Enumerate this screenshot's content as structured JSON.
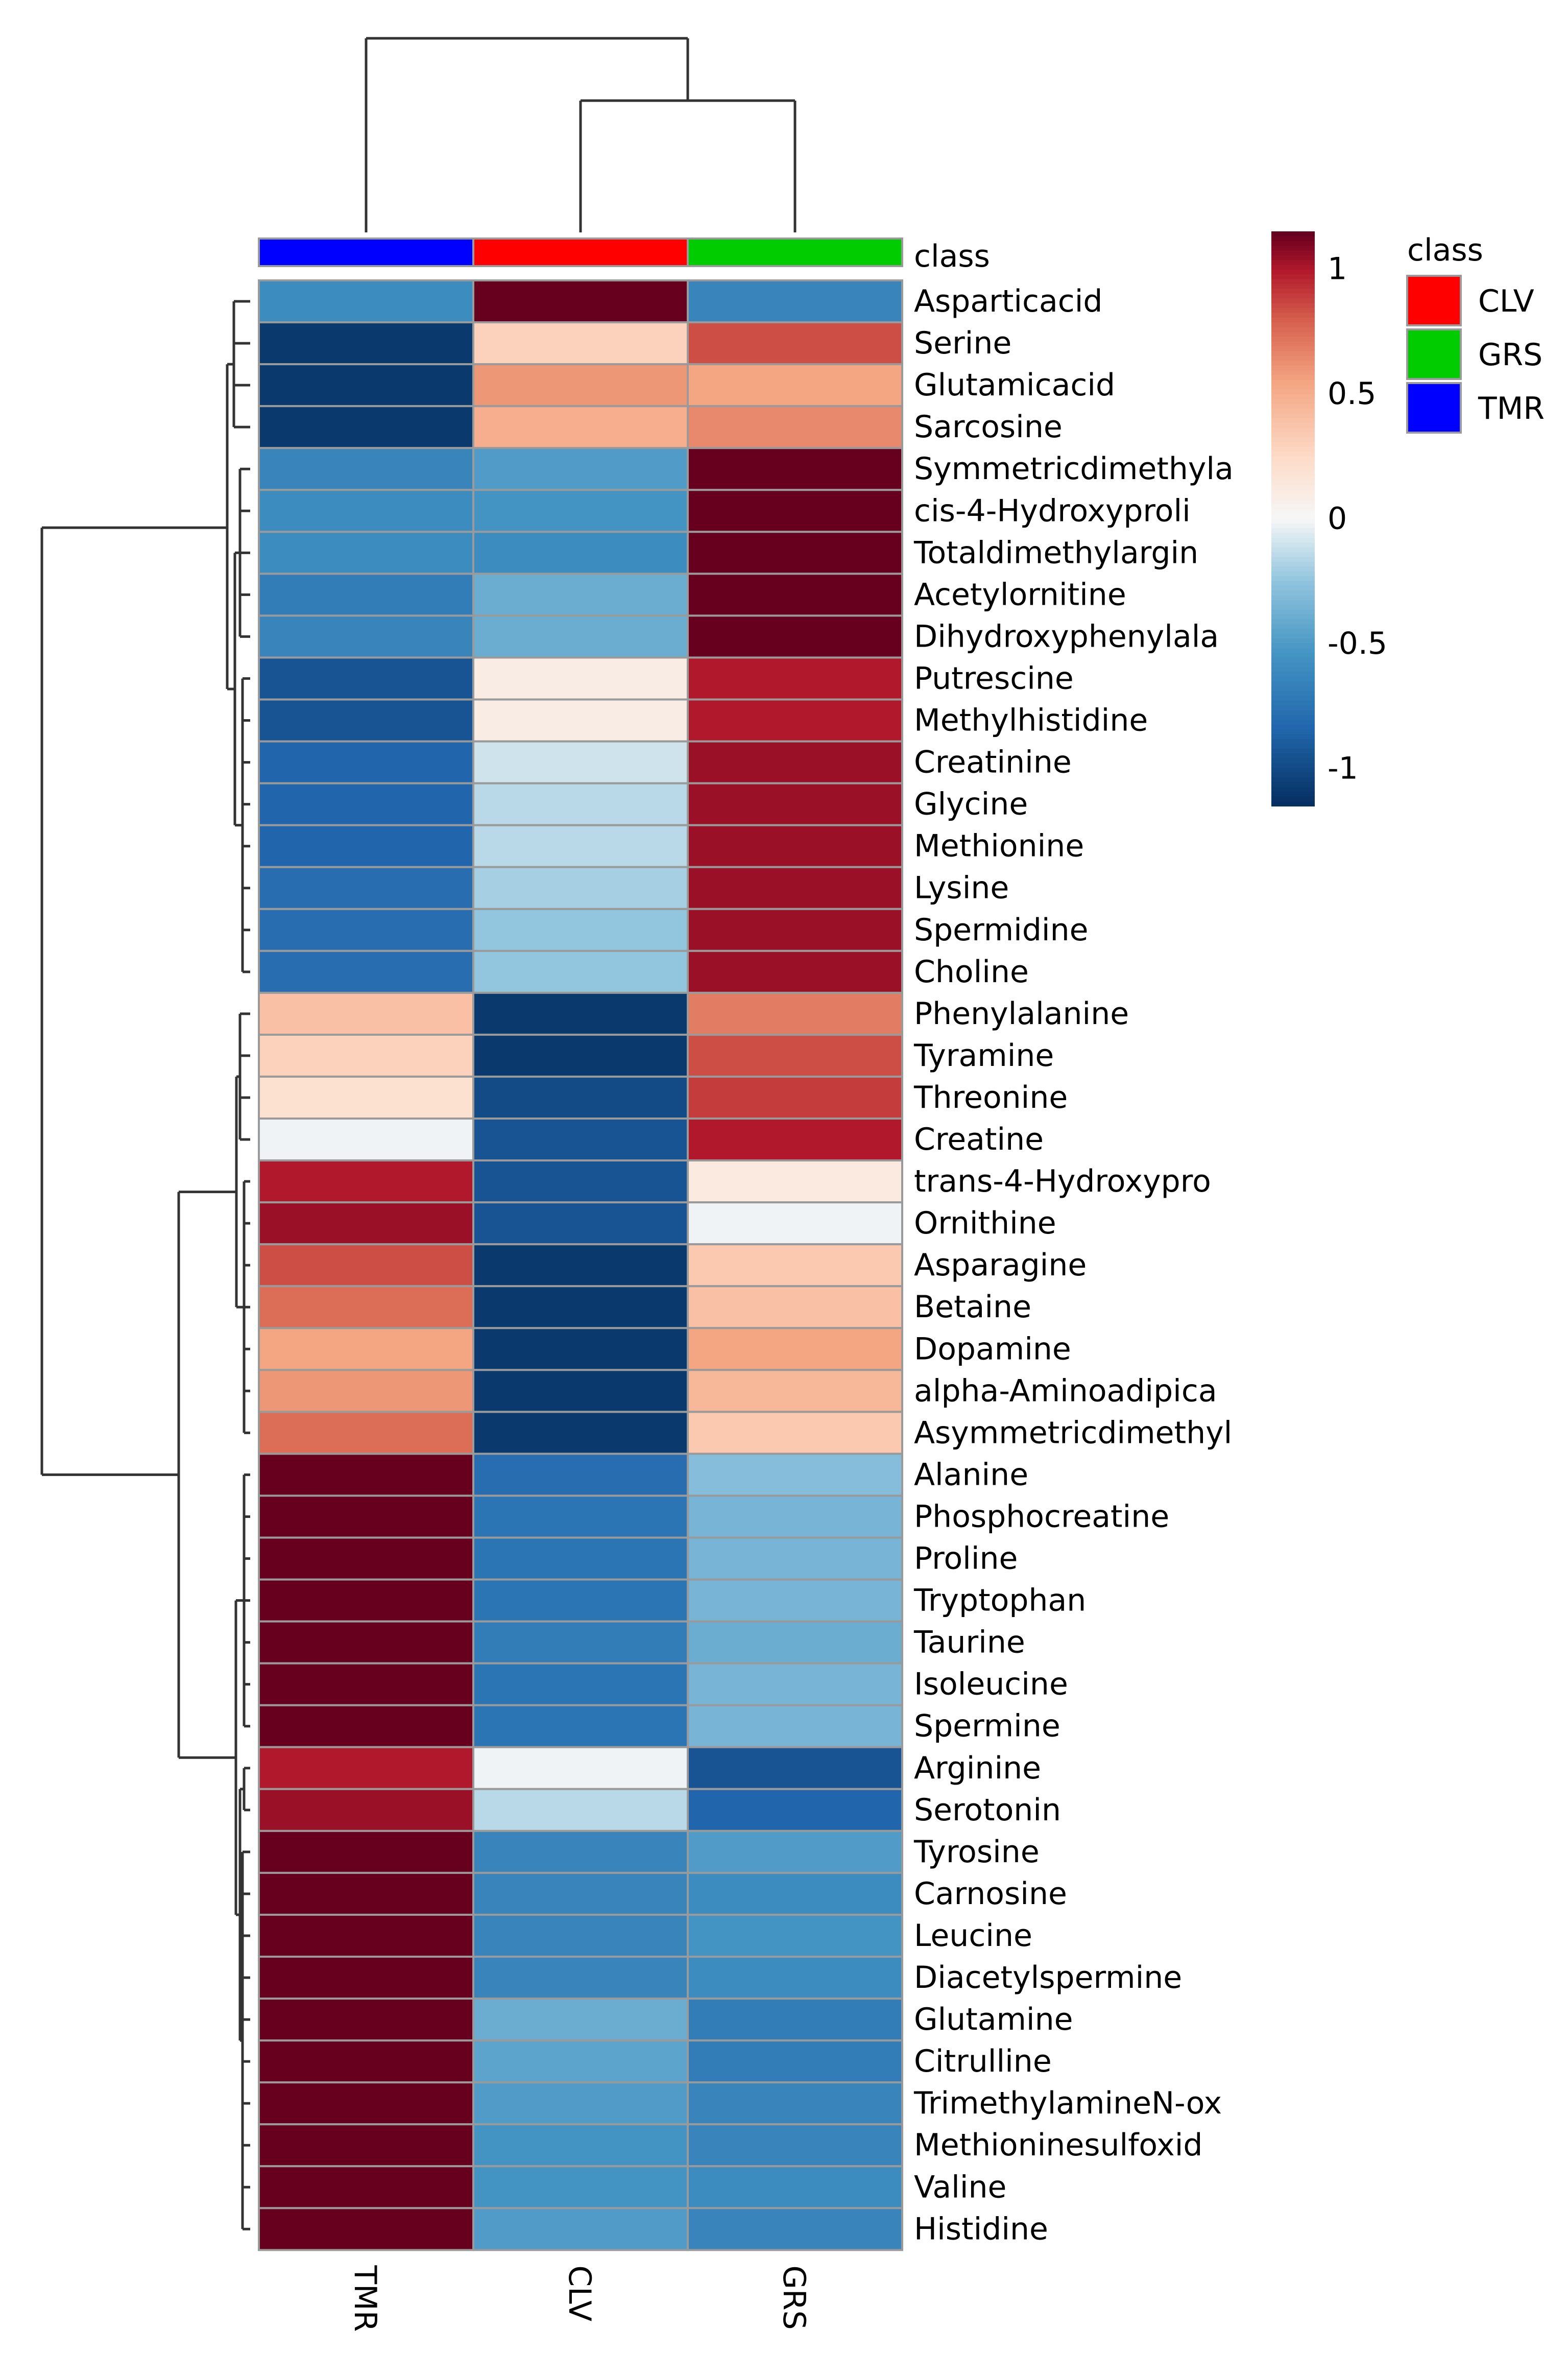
{
  "chart_data": {
    "type": "heatmap",
    "columns": [
      "TMR",
      "CLV",
      "GRS"
    ],
    "class_annotation": {
      "title": "class",
      "values": [
        "TMR",
        "CLV",
        "GRS"
      ]
    },
    "rows": [
      "Asparticacid",
      "Serine",
      "Glutamicacid",
      "Sarcosine",
      "Symmetricdimethyla",
      "cis-4-Hydroxyproli",
      "Totaldimethylargin",
      "Acetylornitine",
      "Dihydroxyphenylala",
      "Putrescine",
      "Methylhistidine",
      "Creatinine",
      "Glycine",
      "Methionine",
      "Lysine",
      "Spermidine",
      "Choline",
      "Phenylalanine",
      "Tyramine",
      "Threonine",
      "Creatine",
      "trans-4-Hydroxypro",
      "Ornithine",
      "Asparagine",
      "Betaine",
      "Dopamine",
      "alpha-Aminoadipica",
      "Asymmetricdimethyl",
      "Alanine",
      "Phosphocreatine",
      "Proline",
      "Tryptophan",
      "Taurine",
      "Isoleucine",
      "Spermine",
      "Arginine",
      "Serotonin",
      "Tyrosine",
      "Carnosine",
      "Leucine",
      "Diacetylspermine",
      "Glutamine",
      "Citrulline",
      "TrimethylamineN-ox",
      "Methioninesulfoxid",
      "Valine",
      "Histidine"
    ],
    "values": [
      [
        -0.6,
        1.15,
        -0.65
      ],
      [
        -1.1,
        0.3,
        0.85
      ],
      [
        -1.1,
        0.6,
        0.55
      ],
      [
        -1.1,
        0.5,
        0.65
      ],
      [
        -0.65,
        -0.5,
        1.15
      ],
      [
        -0.6,
        -0.55,
        1.15
      ],
      [
        -0.6,
        -0.6,
        1.15
      ],
      [
        -0.7,
        -0.4,
        1.15
      ],
      [
        -0.65,
        -0.4,
        1.15
      ],
      [
        -0.95,
        0.1,
        1.0
      ],
      [
        -0.95,
        0.1,
        1.0
      ],
      [
        -0.85,
        -0.1,
        1.05
      ],
      [
        -0.85,
        -0.15,
        1.05
      ],
      [
        -0.85,
        -0.15,
        1.05
      ],
      [
        -0.8,
        -0.2,
        1.05
      ],
      [
        -0.8,
        -0.25,
        1.05
      ],
      [
        -0.8,
        -0.25,
        1.05
      ],
      [
        0.4,
        -1.1,
        0.7
      ],
      [
        0.3,
        -1.1,
        0.85
      ],
      [
        0.2,
        -1.0,
        0.9
      ],
      [
        -0.02,
        -0.95,
        1.0
      ],
      [
        1.0,
        -0.95,
        0.12
      ],
      [
        1.05,
        -0.95,
        -0.02
      ],
      [
        0.85,
        -1.1,
        0.35
      ],
      [
        0.75,
        -1.1,
        0.4
      ],
      [
        0.55,
        -1.1,
        0.55
      ],
      [
        0.6,
        -1.1,
        0.45
      ],
      [
        0.75,
        -1.1,
        0.35
      ],
      [
        1.15,
        -0.8,
        -0.3
      ],
      [
        1.15,
        -0.75,
        -0.35
      ],
      [
        1.15,
        -0.75,
        -0.35
      ],
      [
        1.15,
        -0.75,
        -0.35
      ],
      [
        1.15,
        -0.7,
        -0.4
      ],
      [
        1.15,
        -0.75,
        -0.35
      ],
      [
        1.15,
        -0.75,
        -0.35
      ],
      [
        1.0,
        -0.02,
        -0.95
      ],
      [
        1.05,
        -0.15,
        -0.85
      ],
      [
        1.15,
        -0.65,
        -0.5
      ],
      [
        1.15,
        -0.65,
        -0.6
      ],
      [
        1.15,
        -0.65,
        -0.55
      ],
      [
        1.15,
        -0.65,
        -0.6
      ],
      [
        1.15,
        -0.4,
        -0.7
      ],
      [
        1.15,
        -0.45,
        -0.7
      ],
      [
        1.15,
        -0.5,
        -0.65
      ],
      [
        1.15,
        -0.55,
        -0.65
      ],
      [
        1.15,
        -0.55,
        -0.6
      ],
      [
        1.15,
        -0.5,
        -0.65
      ]
    ],
    "color_scale": {
      "low": "#053061",
      "mid": "#f7f7f7",
      "high": "#67001f",
      "ticks": [
        "1",
        "0.5",
        "0",
        "-0.5",
        "-1"
      ],
      "range": [
        -1.15,
        1.15
      ]
    },
    "legend": {
      "title": "class",
      "items": [
        {
          "label": "CLV",
          "color": "#ff0000"
        },
        {
          "label": "GRS",
          "color": "#00cc00"
        },
        {
          "label": "TMR",
          "color": "#0000ff"
        }
      ],
      "placement": "top-right"
    },
    "dendrogram": {
      "columns": true,
      "rows": true
    }
  }
}
